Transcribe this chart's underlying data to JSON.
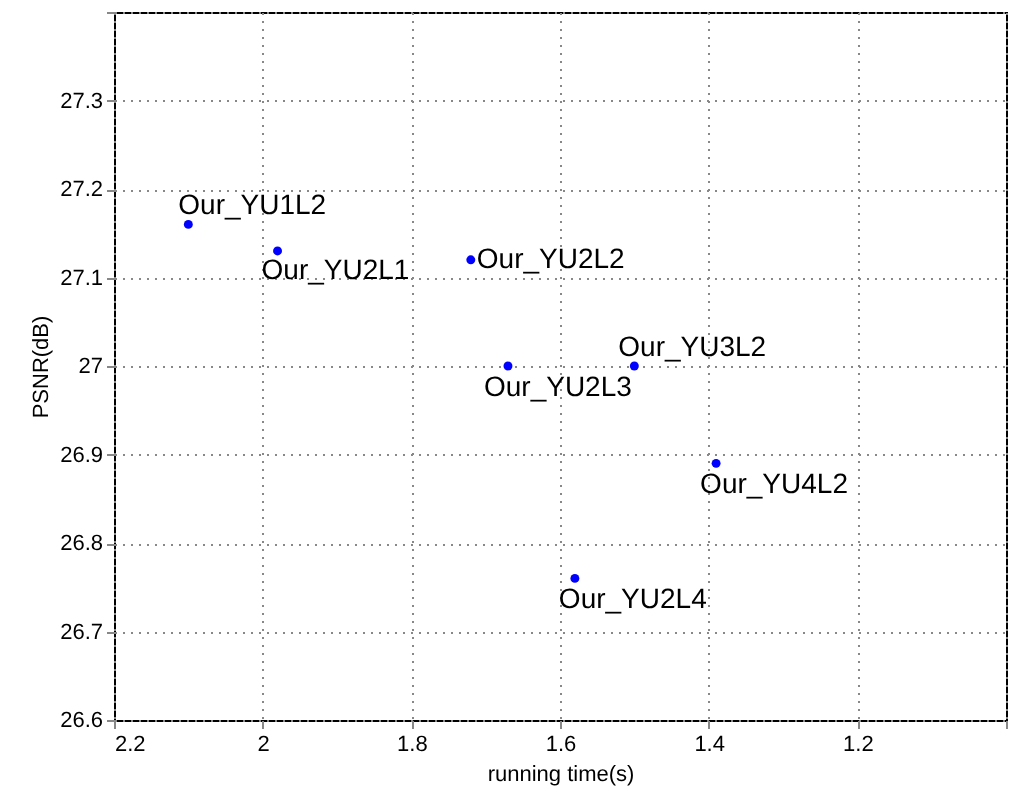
{
  "chart_data": {
    "type": "scatter",
    "xlabel": "running time(s)",
    "ylabel": "PSNR(dB)",
    "x": [
      2.1,
      1.98,
      1.72,
      1.67,
      1.5,
      1.39,
      1.58
    ],
    "series": [
      {
        "color": "#0000ff",
        "values": [
          27.16,
          27.13,
          27.12,
          27.0,
          27.0,
          26.89,
          26.76
        ]
      }
    ],
    "xlim": [
      2.2,
      1.0
    ],
    "xticks": [
      2.2,
      2,
      1.8,
      1.6,
      1.4,
      1.2,
      {
        "value": 1,
        "label": null
      }
    ],
    "ylim": [
      26.6,
      27.4
    ],
    "yticks": [
      26.6,
      26.7,
      26.8,
      26.9,
      27,
      27.1,
      27.2,
      27.3,
      {
        "value": 27.4,
        "label": null
      }
    ],
    "grid": true,
    "marker": "circle",
    "annotations": [
      {
        "text": "Our_YU1L2",
        "x": 2.1,
        "y": 27.16
      },
      {
        "text": "Our_YU2L1",
        "x": 1.98,
        "y": 27.13
      },
      {
        "text": "Our_YU2L2",
        "x": 1.72,
        "y": 27.12
      },
      {
        "text": "Our_YU2L3",
        "x": 1.67,
        "y": 27.0
      },
      {
        "text": "Our_YU3L2",
        "x": 1.5,
        "y": 27.0
      },
      {
        "text": "Our_YU4L2",
        "x": 1.39,
        "y": 26.89
      },
      {
        "text": "Our_YU2L4",
        "x": 1.58,
        "y": 26.76
      }
    ]
  }
}
